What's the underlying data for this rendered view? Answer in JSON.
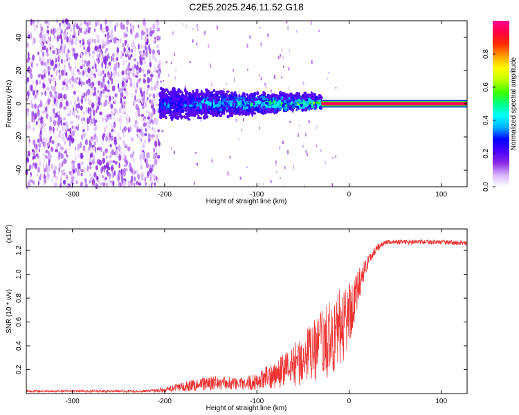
{
  "title": "C2E5.2025.246.11.52.G18",
  "chart_data": [
    {
      "type": "heatmap",
      "title": "C2E5.2025.246.11.52.G18",
      "xlabel": "Height of straight line (km)",
      "ylabel": "Frequency (Hz)",
      "xlim": [
        -350,
        128
      ],
      "ylim": [
        -50,
        50
      ],
      "xticks": [
        -300,
        -200,
        -100,
        0,
        100
      ],
      "xtick_labels": [
        "-300",
        "-200",
        "-100",
        "0",
        "100"
      ],
      "yticks": [
        -40,
        -20,
        0,
        20,
        40
      ],
      "ytick_labels": [
        "-40",
        "-20",
        "0",
        "20",
        "40"
      ],
      "colorbar": {
        "label": "Normalized spectral amplitude",
        "range": [
          0,
          1
        ],
        "ticks": [
          0.0,
          0.2,
          0.4,
          0.6,
          0.8
        ],
        "tick_labels": [
          "0.0",
          "0.2",
          "0.4",
          "0.6",
          "0.8"
        ],
        "colors": [
          "#ffffff",
          "#d8b4ff",
          "#8a2be2",
          "#4b00ff",
          "#0000ff",
          "#00b0ff",
          "#00ffff",
          "#00ff80",
          "#40ff00",
          "#c0ff00",
          "#ffff00",
          "#ffa000",
          "#ff3000",
          "#ff0040",
          "#ff0090"
        ]
      },
      "regions": [
        {
          "name": "noise",
          "x_range": [
            -350,
            -205
          ],
          "freq_range": [
            -50,
            50
          ],
          "amplitude": 0.1
        },
        {
          "name": "transition-band",
          "x_range": [
            -205,
            -30
          ],
          "freq_center": 0,
          "freq_halfwidth": [
            9,
            4
          ],
          "amplitude": [
            0.25,
            0.45
          ]
        },
        {
          "name": "carrier-line",
          "x_range": [
            -30,
            128
          ],
          "freq_center": 0,
          "freq_halfwidth": 1,
          "amplitude": 0.95
        }
      ]
    },
    {
      "type": "line",
      "xlabel": "Height of straight line (km)",
      "ylabel": "SNR (10 * v/v)",
      "y_multiplier_label": "(x10",
      "y_multiplier_exponent": "4",
      "xlim": [
        -350,
        128
      ],
      "ylim": [
        0,
        1.38
      ],
      "xticks": [
        -300,
        -200,
        -100,
        0,
        100
      ],
      "xtick_labels": [
        "-300",
        "-200",
        "-100",
        "0",
        "100"
      ],
      "yticks": [
        0.2,
        0.4,
        0.6,
        0.8,
        1.0,
        1.2
      ],
      "ytick_labels": [
        "0.2",
        "0.4",
        "0.6",
        "0.8",
        "1.0",
        "1.2"
      ],
      "color": "#ee3333",
      "series": [
        {
          "name": "SNR",
          "x": [
            -350,
            -300,
            -250,
            -220,
            -200,
            -180,
            -160,
            -140,
            -120,
            -100,
            -80,
            -60,
            -40,
            -30,
            -20,
            -10,
            0,
            10,
            20,
            30,
            40,
            60,
            80,
            100,
            128
          ],
          "y": [
            0.02,
            0.02,
            0.02,
            0.02,
            0.03,
            0.06,
            0.08,
            0.09,
            0.08,
            0.1,
            0.16,
            0.24,
            0.34,
            0.4,
            0.46,
            0.54,
            0.66,
            0.9,
            1.1,
            1.22,
            1.27,
            1.27,
            1.27,
            1.27,
            1.26
          ],
          "spread": [
            0.01,
            0.01,
            0.01,
            0.01,
            0.02,
            0.04,
            0.06,
            0.06,
            0.05,
            0.07,
            0.12,
            0.18,
            0.26,
            0.3,
            0.32,
            0.34,
            0.3,
            0.14,
            0.06,
            0.03,
            0.02,
            0.02,
            0.02,
            0.02,
            0.02
          ]
        }
      ]
    }
  ]
}
